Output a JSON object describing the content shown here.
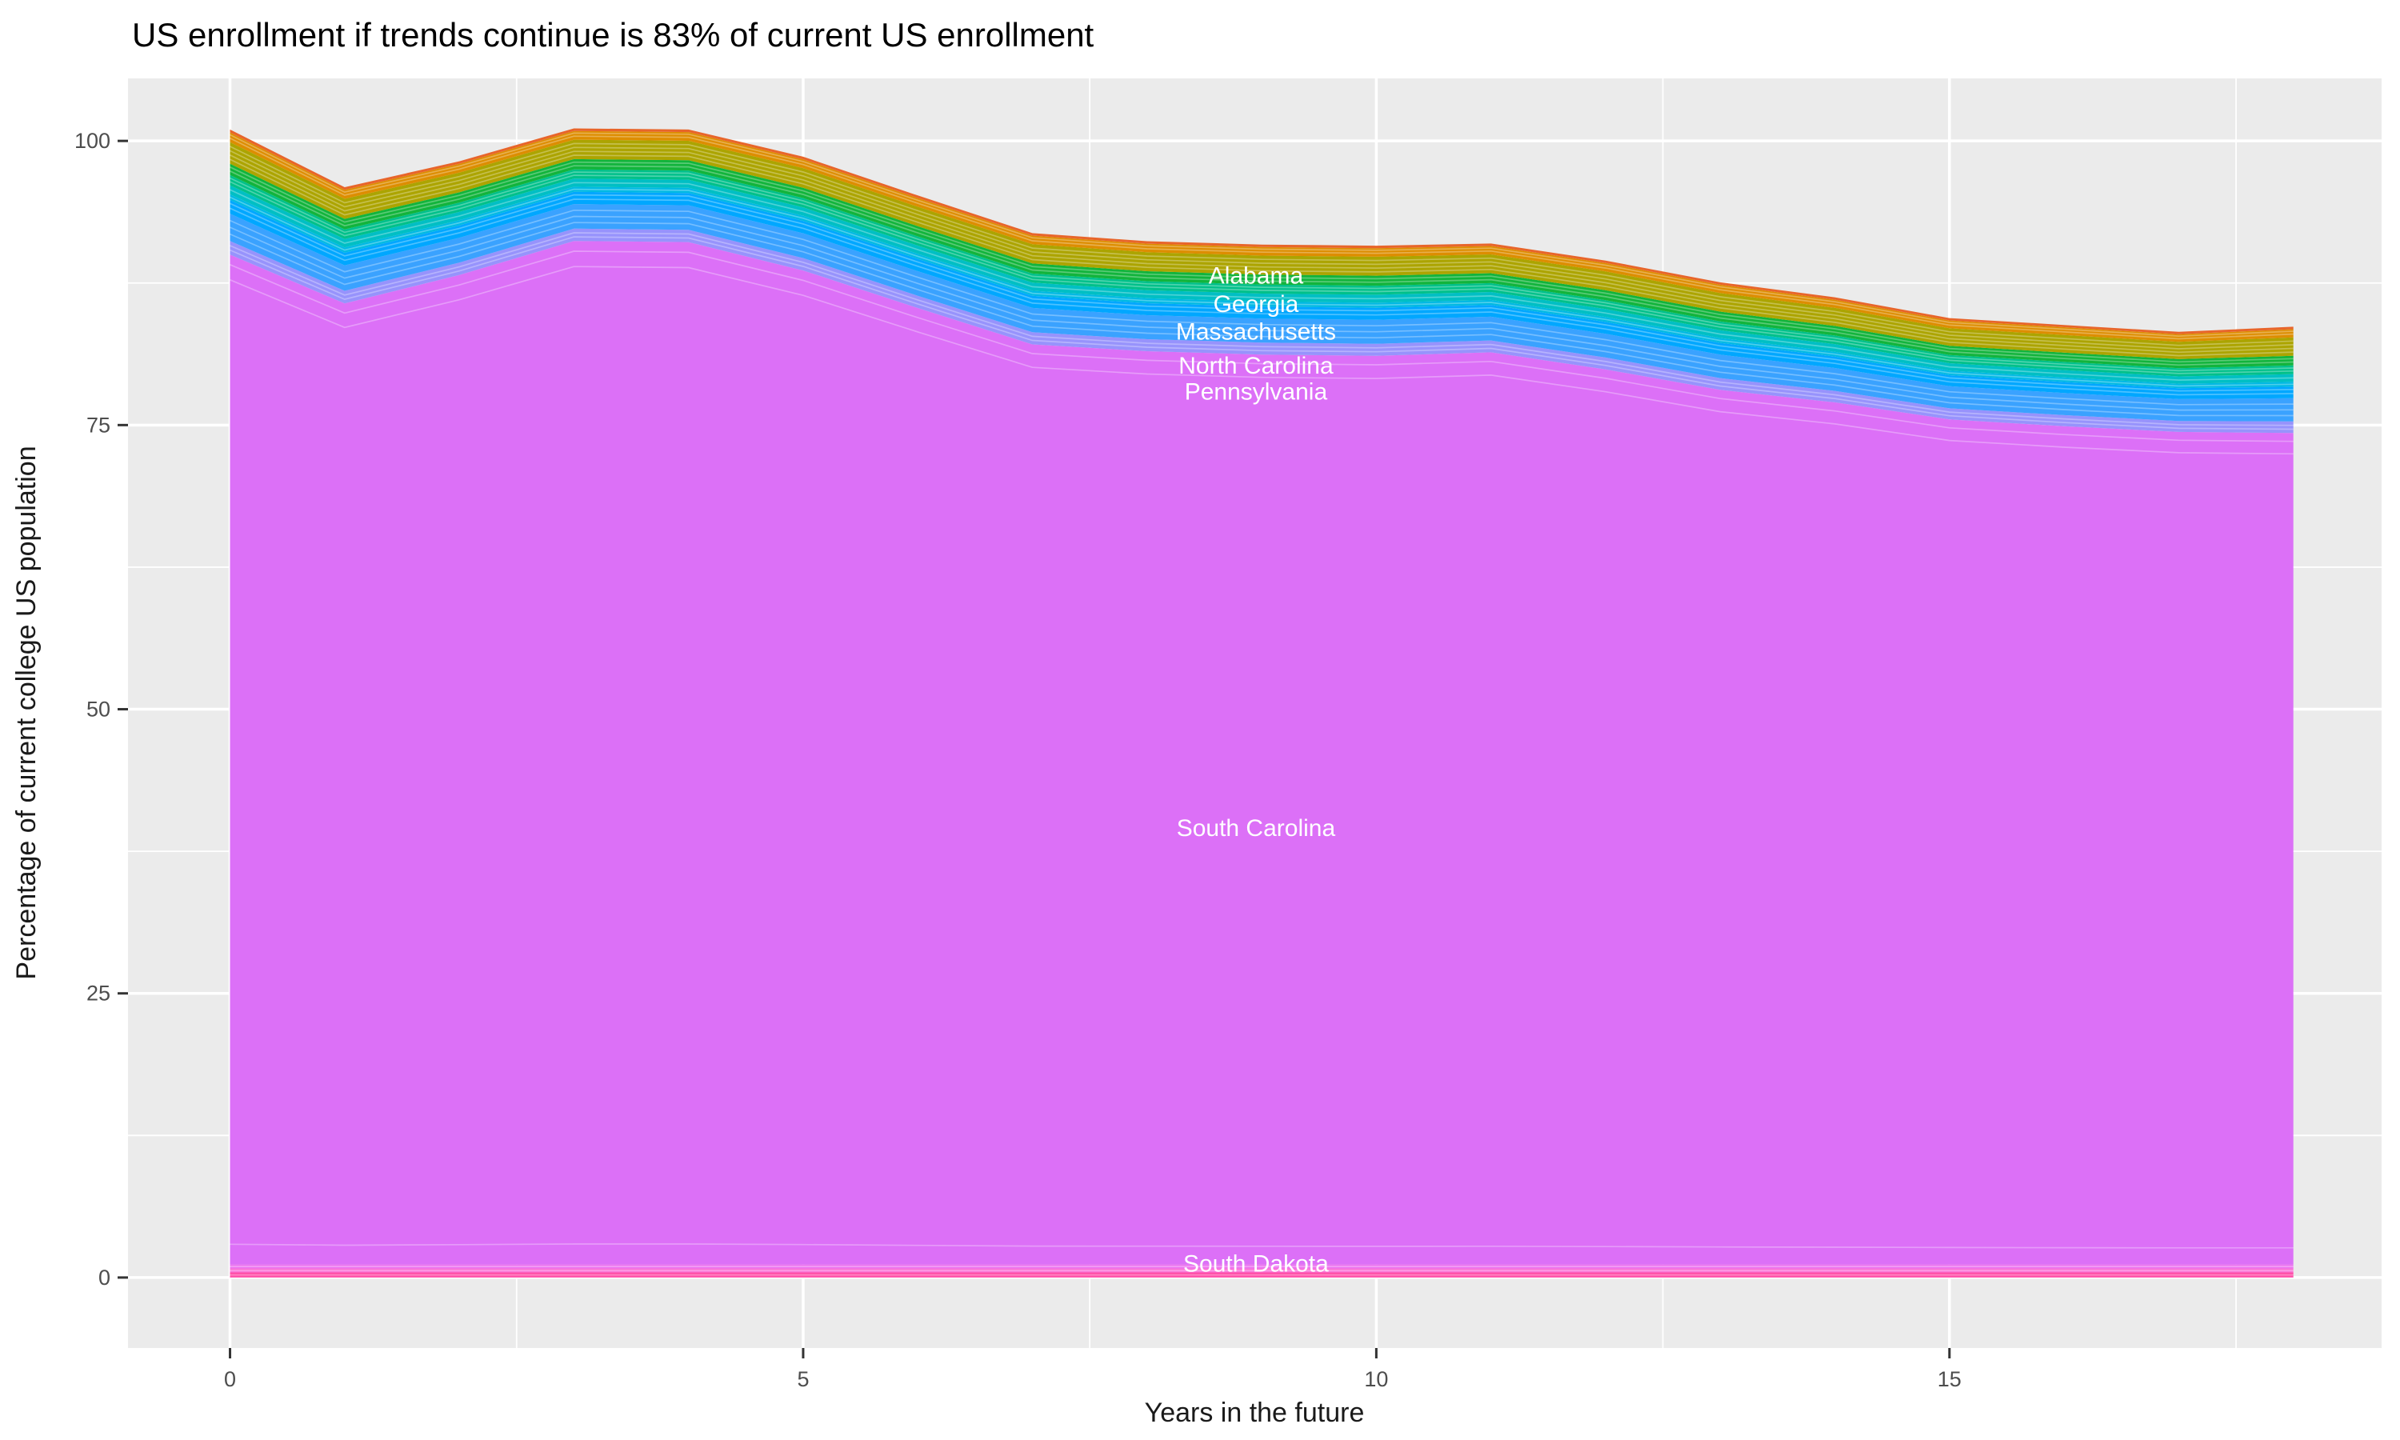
{
  "chart_data": {
    "type": "area",
    "stacked": true,
    "title": "US enrollment if trends continue is 83% of current US enrollment",
    "axes": {
      "x": {
        "title": "Years in the future",
        "ticks": [
          0,
          5,
          10,
          15
        ],
        "minor_ticks": [
          2.5,
          7.5,
          12.5,
          17.5
        ],
        "range": [
          -0.89,
          18.77
        ]
      },
      "y": {
        "title": "Percentage of current college US population",
        "ticks": [
          0,
          25,
          50,
          75,
          100
        ],
        "minor_ticks": [
          12.5,
          37.5,
          62.5,
          87.5
        ],
        "range": [
          -6.2,
          105.5
        ]
      }
    },
    "x": [
      0,
      1,
      2,
      3,
      4,
      5,
      6,
      7,
      8,
      9,
      10,
      11,
      12,
      13,
      14,
      15,
      16,
      17,
      18
    ],
    "total_pct": [
      100.0,
      95.0,
      97.3,
      100.2,
      100.1,
      97.7,
      94.3,
      91.0,
      90.3,
      90.0,
      89.9,
      90.1,
      88.6,
      86.7,
      85.4,
      83.6,
      83.0,
      82.4,
      82.8
    ],
    "south_carolina_top_pct": [
      90.0,
      85.7,
      88.2,
      91.2,
      91.1,
      88.6,
      85.3,
      82.1,
      81.5,
      81.2,
      81.1,
      81.4,
      79.9,
      78.1,
      77.0,
      75.5,
      74.9,
      74.4,
      74.3
    ],
    "base_offset_pct": 1.15,
    "series": [
      {
        "name": "states-below-south-carolina-hotpink",
        "color": "#FF4FA8",
        "const": 0.45,
        "hairline_fracs": [
          0.5
        ]
      },
      {
        "name": "states-below-south-carolina-pink",
        "color": "#FA75D8",
        "const": 0.35,
        "hairline_fracs": [
          0.45
        ]
      },
      {
        "name": "states-below-south-carolina-lavender",
        "color": "#EC74F0",
        "const": 0.35,
        "hairline_fracs": [
          0.5
        ]
      },
      {
        "name": "south-carolina",
        "color": "#DC70F7",
        "sc": true,
        "hairline_fracs": [
          0.02,
          0.975,
          0.99
        ]
      },
      {
        "name": "pennsylvania-group-periwinkle",
        "color": "#9793FC",
        "frac": 0.12,
        "hairline_fracs": [
          0.33,
          0.66
        ]
      },
      {
        "name": "north-carolina-group-blue",
        "color": "#3AA2FF",
        "frac": 0.24,
        "hairline_fracs": [
          0.25,
          0.5,
          0.75
        ]
      },
      {
        "name": "azure-group",
        "color": "#00A7FF",
        "frac": 0.12,
        "hairline_fracs": [
          0.4,
          0.75
        ]
      },
      {
        "name": "cyan-group",
        "color": "#00B9E3",
        "frac": 0.05,
        "hairline_fracs": [
          0.5
        ]
      },
      {
        "name": "massachusetts-group-teal",
        "color": "#00BFC4",
        "frac": 0.08,
        "hairline_fracs": [
          0.5
        ]
      },
      {
        "name": "emerald-group",
        "color": "#00C08A",
        "frac": 0.09,
        "hairline_fracs": [
          0.35,
          0.7
        ]
      },
      {
        "name": "green-group",
        "color": "#12B43C",
        "frac": 0.1,
        "hairline_fracs": [
          0.35,
          0.7
        ]
      },
      {
        "name": "georgia-group-olive",
        "color": "#ACA400",
        "frac": 0.19,
        "hairline_fracs": [
          0.2,
          0.4,
          0.6,
          0.8
        ]
      },
      {
        "name": "alabama-group-orange",
        "color": "#DD8D00",
        "frac": 0.085,
        "hairline_fracs": [
          0.4,
          0.75
        ]
      },
      {
        "name": "top-redorange-line",
        "color": "#E8652A",
        "frac": 0.025,
        "hairline_fracs": []
      }
    ],
    "state_labels": [
      {
        "text": "Alabama",
        "x": 8.95,
        "y_pct": 88.1
      },
      {
        "text": "Georgia",
        "x": 8.95,
        "y_pct": 85.6
      },
      {
        "text": "Massachusetts",
        "x": 8.95,
        "y_pct": 83.2
      },
      {
        "text": "North Carolina",
        "x": 8.95,
        "y_pct": 80.2
      },
      {
        "text": "Pennsylvania",
        "x": 8.95,
        "y_pct": 77.9
      },
      {
        "text": "South Carolina",
        "x": 8.95,
        "y_pct": 39.5
      },
      {
        "text": "South Dakota",
        "x": 8.95,
        "y_pct": 1.2
      }
    ],
    "label_color": "#FFFFFF"
  },
  "style": {
    "panel_bg": "#EBEBEB",
    "grid_color": "#FFFFFF",
    "tick_color": "#333333",
    "tick_label_color": "#4D4D4D",
    "axis_title_color": "#1A1A1A",
    "title_color": "#000000"
  }
}
